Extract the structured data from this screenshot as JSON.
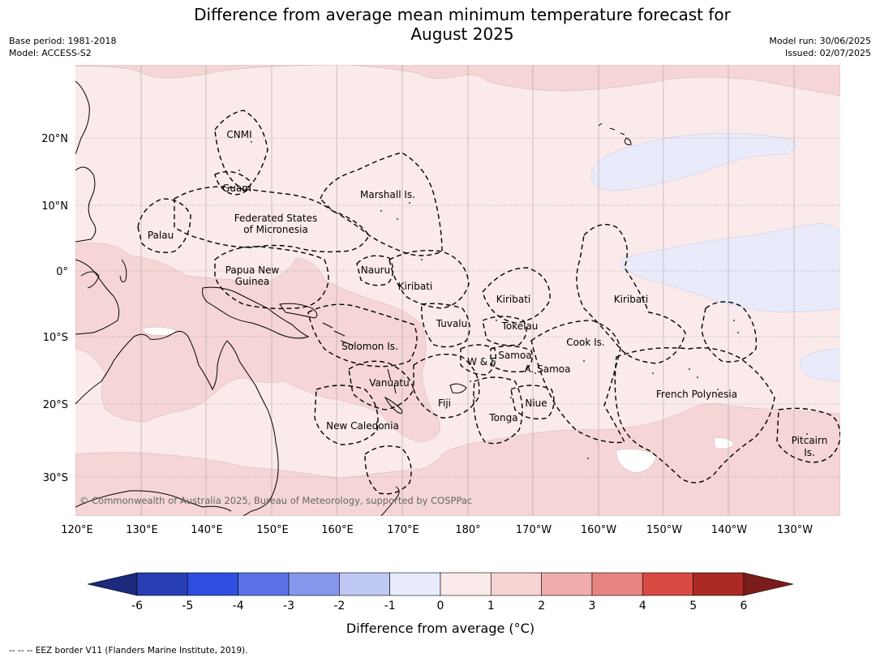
{
  "title_line1": "Difference from average mean minimum temperature forecast for",
  "title_line2": "August 2025",
  "meta_left": {
    "base_period": "Base period: 1981-2018",
    "model": "Model: ACCESS-S2"
  },
  "meta_right": {
    "model_run": "Model run: 30/06/2025",
    "issued": "Issued: 02/07/2025"
  },
  "credit": "© Commonwealth of Australia 2025, Bureau of Meteorology, supported by COSPPac",
  "lon_labels": [
    "120°E",
    "130°E",
    "140°E",
    "150°E",
    "160°E",
    "170°E",
    "180°",
    "170°W",
    "160°W",
    "150°W",
    "140°W",
    "130°W"
  ],
  "lat_labels": [
    "20°N",
    "10°N",
    "0°",
    "10°S",
    "20°S",
    "30°S"
  ],
  "region_labels": [
    {
      "id": "cnmi",
      "text": "CNMI"
    },
    {
      "id": "guam",
      "text": "Guam"
    },
    {
      "id": "marshall",
      "text": "Marshall Is."
    },
    {
      "id": "palau",
      "text": "Palau"
    },
    {
      "id": "fsm1",
      "text": "Federated States"
    },
    {
      "id": "fsm2",
      "text": "of Micronesia"
    },
    {
      "id": "png1",
      "text": "Papua New"
    },
    {
      "id": "png2",
      "text": "Guinea"
    },
    {
      "id": "nauru",
      "text": "Nauru"
    },
    {
      "id": "kiribati1",
      "text": "Kiribati"
    },
    {
      "id": "kiribati2",
      "text": "Kiribati"
    },
    {
      "id": "kiribati3",
      "text": "Kiribati"
    },
    {
      "id": "tuvalu",
      "text": "Tuvalu"
    },
    {
      "id": "tokelau",
      "text": "Tokelau"
    },
    {
      "id": "solomon",
      "text": "Solomon Is."
    },
    {
      "id": "wf",
      "text": "W & F"
    },
    {
      "id": "samoa",
      "text": "Samoa"
    },
    {
      "id": "asamoa",
      "text": "A. Samoa"
    },
    {
      "id": "cook",
      "text": "Cook Is."
    },
    {
      "id": "vanuatu",
      "text": "Vanuatu"
    },
    {
      "id": "fiji",
      "text": "Fiji"
    },
    {
      "id": "niue",
      "text": "Niue"
    },
    {
      "id": "tonga",
      "text": "Tonga"
    },
    {
      "id": "frpoly",
      "text": "French Polynesia"
    },
    {
      "id": "newcal",
      "text": "New Caledonia"
    },
    {
      "id": "pitcairn1",
      "text": "Pitcairn"
    },
    {
      "id": "pitcairn2",
      "text": "Is."
    }
  ],
  "colorbar": {
    "title": "Difference from average (°C)",
    "ticks": [
      "-6",
      "-5",
      "-4",
      "-3",
      "-2",
      "-1",
      "0",
      "1",
      "2",
      "3",
      "4",
      "5",
      "6"
    ],
    "colors": [
      "#1b2a7a",
      "#283eb5",
      "#2f4fe0",
      "#5a72e6",
      "#8596ec",
      "#bfc7f3",
      "#e8ebfb",
      "#fbeaea",
      "#f6d3d3",
      "#efacaa",
      "#e68480",
      "#d94a43",
      "#ac2a24",
      "#7a1c1a"
    ]
  },
  "footnote": "-- -- -- EEZ border V11 (Flanders Marine Institute, 2019)."
}
